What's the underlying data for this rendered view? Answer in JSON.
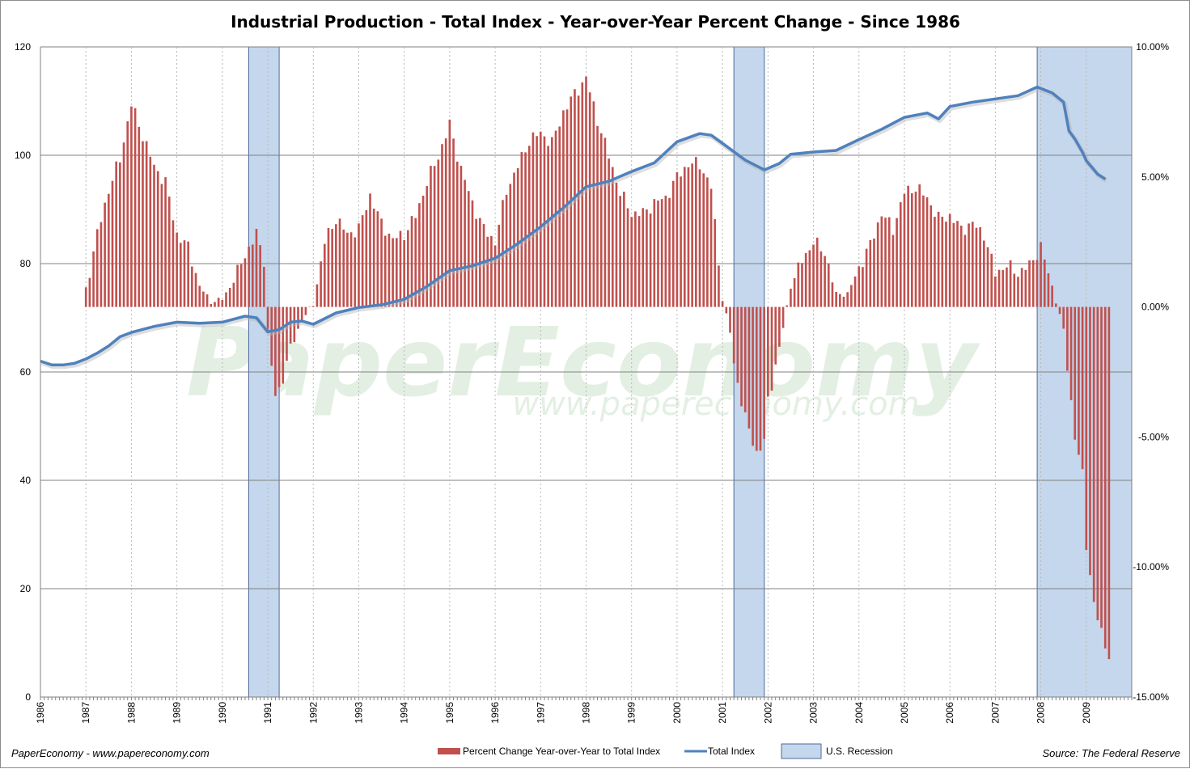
{
  "chart_data": {
    "type": "bar+line",
    "title": "Industrial Production - Total Index - Year-over-Year Percent Change - Since 1986",
    "xlabel": "",
    "ylabel_left": "",
    "ylabel_right": "",
    "x_start": 1986.0,
    "x_end": 2010.0,
    "x_tick_labels": [
      "1986",
      "1987",
      "1988",
      "1989",
      "1990",
      "1991",
      "1992",
      "1993",
      "1994",
      "1995",
      "1996",
      "1997",
      "1998",
      "1999",
      "2000",
      "2001",
      "2002",
      "2003",
      "2004",
      "2005",
      "2006",
      "2007",
      "2008",
      "2009"
    ],
    "y_left": {
      "min": 0,
      "max": 120,
      "ticks": [
        0,
        20,
        40,
        60,
        80,
        100,
        120
      ],
      "tick_labels": [
        "0",
        "20",
        "40",
        "60",
        "80",
        "100",
        "120"
      ]
    },
    "y_right": {
      "min": -15,
      "max": 10,
      "ticks": [
        -15,
        -10,
        -5,
        0,
        5,
        10
      ],
      "tick_labels": [
        "-15.00%",
        "-10.00%",
        "-5.00%",
        "0.00%",
        "5.00%",
        "10.00%"
      ]
    },
    "grid": "horizontal lines and dotted vertical year lines",
    "recessions": [
      {
        "start": 1990.58,
        "end": 1991.25
      },
      {
        "start": 2001.25,
        "end": 2001.92
      },
      {
        "start": 2007.92,
        "end": 2010.0
      }
    ],
    "series": [
      {
        "name": "Percent Change Year-over-Year to Total Index",
        "type": "bar",
        "axis": "right",
        "color": "#c0504d",
        "interval": "monthly",
        "start": 1987.0,
        "points": [
          [
            1987.0,
            0.7
          ],
          [
            1987.25,
            2.8
          ],
          [
            1987.5,
            4.5
          ],
          [
            1987.75,
            5.7
          ],
          [
            1988.0,
            7.8
          ],
          [
            1988.25,
            6.6
          ],
          [
            1988.5,
            5.4
          ],
          [
            1988.75,
            4.8
          ],
          [
            1989.0,
            2.8
          ],
          [
            1989.25,
            2.3
          ],
          [
            1989.5,
            0.8
          ],
          [
            1989.75,
            0.2
          ],
          [
            1990.0,
            0.3
          ],
          [
            1990.25,
            1.0
          ],
          [
            1990.5,
            2.0
          ],
          [
            1990.75,
            2.8
          ],
          [
            1990.92,
            1.8
          ],
          [
            1991.0,
            -1.1
          ],
          [
            1991.17,
            -3.5
          ],
          [
            1991.25,
            -3.2
          ],
          [
            1991.5,
            -1.6
          ],
          [
            1991.75,
            -0.5
          ],
          [
            1992.0,
            0.1
          ],
          [
            1992.25,
            2.5
          ],
          [
            1992.5,
            3.4
          ],
          [
            1992.75,
            2.8
          ],
          [
            1993.0,
            3.0
          ],
          [
            1993.25,
            4.3
          ],
          [
            1993.5,
            3.2
          ],
          [
            1993.75,
            2.6
          ],
          [
            1994.0,
            2.8
          ],
          [
            1994.25,
            3.5
          ],
          [
            1994.5,
            4.8
          ],
          [
            1994.75,
            5.8
          ],
          [
            1995.0,
            7.0
          ],
          [
            1995.25,
            5.3
          ],
          [
            1995.5,
            4.0
          ],
          [
            1995.75,
            3.0
          ],
          [
            1996.0,
            2.5
          ],
          [
            1996.25,
            4.5
          ],
          [
            1996.5,
            5.4
          ],
          [
            1996.75,
            6.4
          ],
          [
            1997.0,
            6.7
          ],
          [
            1997.25,
            6.3
          ],
          [
            1997.5,
            7.5
          ],
          [
            1997.75,
            8.2
          ],
          [
            1998.0,
            8.8
          ],
          [
            1998.25,
            7.2
          ],
          [
            1998.5,
            5.8
          ],
          [
            1998.75,
            4.4
          ],
          [
            1999.0,
            3.6
          ],
          [
            1999.25,
            3.6
          ],
          [
            1999.5,
            4.0
          ],
          [
            1999.75,
            4.2
          ],
          [
            2000.0,
            5.0
          ],
          [
            2000.25,
            5.5
          ],
          [
            2000.5,
            5.5
          ],
          [
            2000.75,
            4.6
          ],
          [
            2001.0,
            0.3
          ],
          [
            2001.17,
            -1.0
          ],
          [
            2001.25,
            -2.2
          ],
          [
            2001.5,
            -4.3
          ],
          [
            2001.75,
            -5.6
          ],
          [
            2001.92,
            -5.2
          ],
          [
            2002.0,
            -3.6
          ],
          [
            2002.25,
            -1.6
          ],
          [
            2002.5,
            0.8
          ],
          [
            2002.75,
            1.8
          ],
          [
            2003.0,
            2.5
          ],
          [
            2003.25,
            2.1
          ],
          [
            2003.5,
            0.5
          ],
          [
            2003.75,
            0.5
          ],
          [
            2004.0,
            1.5
          ],
          [
            2004.25,
            2.4
          ],
          [
            2004.5,
            3.6
          ],
          [
            2004.75,
            3.0
          ],
          [
            2005.0,
            4.4
          ],
          [
            2005.25,
            4.6
          ],
          [
            2005.5,
            4.2
          ],
          [
            2005.75,
            3.4
          ],
          [
            2006.0,
            3.5
          ],
          [
            2006.25,
            3.0
          ],
          [
            2006.5,
            3.2
          ],
          [
            2006.75,
            2.8
          ],
          [
            2007.0,
            1.3
          ],
          [
            2007.25,
            1.6
          ],
          [
            2007.5,
            1.3
          ],
          [
            2007.75,
            1.6
          ],
          [
            2008.0,
            2.3
          ],
          [
            2008.25,
            0.8
          ],
          [
            2008.5,
            -0.9
          ],
          [
            2008.75,
            -5.0
          ],
          [
            2008.92,
            -6.5
          ],
          [
            2009.0,
            -9.1
          ],
          [
            2009.17,
            -11.5
          ],
          [
            2009.33,
            -12.5
          ],
          [
            2009.5,
            -13.4
          ]
        ]
      },
      {
        "name": "Total Index",
        "type": "line",
        "axis": "left",
        "color": "#4f81bd",
        "points": [
          [
            1986.0,
            62.0
          ],
          [
            1986.25,
            61.3
          ],
          [
            1986.5,
            61.3
          ],
          [
            1986.75,
            61.6
          ],
          [
            1987.0,
            62.4
          ],
          [
            1987.25,
            63.5
          ],
          [
            1987.5,
            64.8
          ],
          [
            1987.75,
            66.5
          ],
          [
            1988.0,
            67.3
          ],
          [
            1988.5,
            68.4
          ],
          [
            1989.0,
            69.2
          ],
          [
            1989.5,
            69.0
          ],
          [
            1990.0,
            69.2
          ],
          [
            1990.5,
            70.3
          ],
          [
            1990.75,
            70.0
          ],
          [
            1991.0,
            67.4
          ],
          [
            1991.25,
            67.8
          ],
          [
            1991.5,
            69.2
          ],
          [
            1991.75,
            69.4
          ],
          [
            1992.0,
            68.8
          ],
          [
            1992.5,
            70.9
          ],
          [
            1993.0,
            71.9
          ],
          [
            1993.5,
            72.4
          ],
          [
            1994.0,
            73.4
          ],
          [
            1994.5,
            75.8
          ],
          [
            1995.0,
            78.7
          ],
          [
            1995.5,
            79.6
          ],
          [
            1996.0,
            81.0
          ],
          [
            1996.5,
            83.7
          ],
          [
            1997.0,
            86.8
          ],
          [
            1997.5,
            90.3
          ],
          [
            1998.0,
            94.2
          ],
          [
            1998.5,
            95.2
          ],
          [
            1999.0,
            97.0
          ],
          [
            1999.5,
            98.6
          ],
          [
            2000.0,
            102.5
          ],
          [
            2000.5,
            104.0
          ],
          [
            2000.75,
            103.7
          ],
          [
            2001.0,
            102.2
          ],
          [
            2001.5,
            99.1
          ],
          [
            2001.92,
            97.3
          ],
          [
            2002.25,
            98.5
          ],
          [
            2002.5,
            100.2
          ],
          [
            2003.0,
            100.6
          ],
          [
            2003.5,
            100.9
          ],
          [
            2004.0,
            102.9
          ],
          [
            2004.5,
            104.8
          ],
          [
            2005.0,
            107.0
          ],
          [
            2005.5,
            107.8
          ],
          [
            2005.75,
            106.7
          ],
          [
            2006.0,
            109.0
          ],
          [
            2006.5,
            109.8
          ],
          [
            2007.0,
            110.4
          ],
          [
            2007.5,
            111.0
          ],
          [
            2007.92,
            112.6
          ],
          [
            2008.25,
            111.5
          ],
          [
            2008.5,
            109.8
          ],
          [
            2008.62,
            104.5
          ],
          [
            2008.75,
            103.0
          ],
          [
            2008.92,
            100.5
          ],
          [
            2009.0,
            99.0
          ],
          [
            2009.25,
            96.5
          ],
          [
            2009.42,
            95.6
          ]
        ]
      }
    ],
    "legend": {
      "placement": "bottom-center",
      "items": [
        "Percent Change Year-over-Year to Total Index",
        "Total Index",
        "U.S. Recession"
      ]
    }
  },
  "footer": {
    "left": "PaperEconomy - www.papereconomy.com",
    "right": "Source: The Federal Reserve"
  },
  "watermark": {
    "brand": "PaperEconomy",
    "url": "www.papereconomy.com"
  },
  "colors": {
    "bar": "#c0504d",
    "line": "#4f81bd",
    "recession_fill": "#c5d7ec",
    "recession_stroke": "#4f6a9c"
  }
}
